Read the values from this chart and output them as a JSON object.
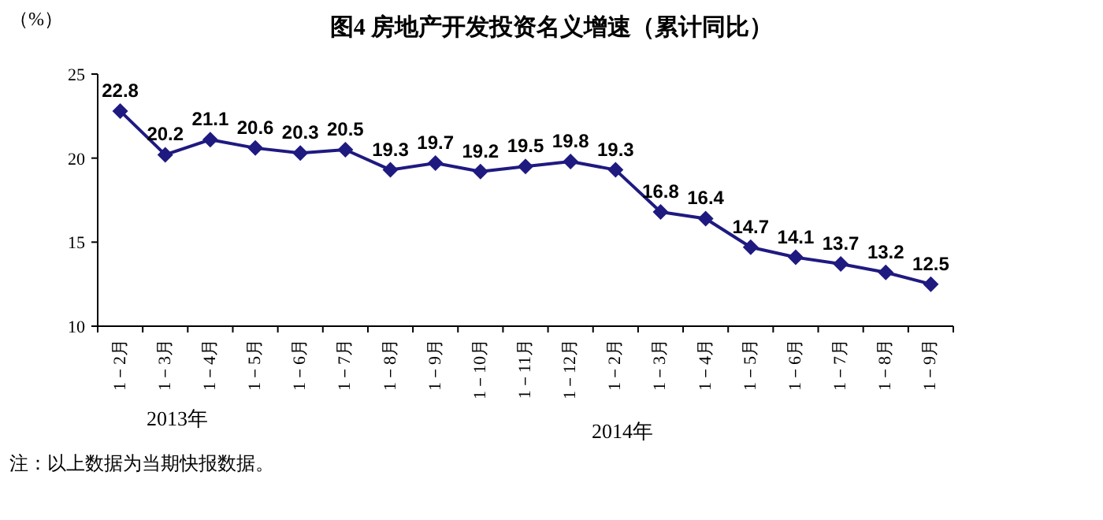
{
  "chart_data": {
    "type": "line",
    "title": "图4  房地产开发投资名义增速（累计同比）",
    "ylabel": "（%）",
    "categories": [
      "1－2月",
      "1－3月",
      "1－4月",
      "1－5月",
      "1－6月",
      "1－7月",
      "1－8月",
      "1－9月",
      "1－10月",
      "1－11月",
      "1－12月",
      "1－2月",
      "1－3月",
      "1－4月",
      "1－5月",
      "1－6月",
      "1－7月",
      "1－8月",
      "1－9月"
    ],
    "values": [
      22.8,
      20.2,
      21.1,
      20.6,
      20.3,
      20.5,
      19.3,
      19.7,
      19.2,
      19.5,
      19.8,
      19.3,
      16.8,
      16.4,
      14.7,
      14.1,
      13.7,
      13.2,
      12.5
    ],
    "color": "#1f1a80",
    "marker": "diamond",
    "line_style": "solid",
    "data_labels": true,
    "ylim": [
      10,
      25
    ],
    "yticks": [
      10,
      15,
      20,
      25
    ],
    "grid": false,
    "annotations": [
      "2013年",
      "2014年",
      "注：以上数据为当期快报数据。"
    ]
  }
}
